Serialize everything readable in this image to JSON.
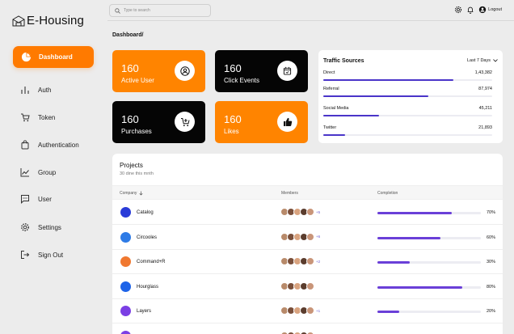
{
  "app": {
    "title": "E-Housing"
  },
  "sidebar": {
    "active": {
      "label": "Dashboard",
      "icon": "pie-chart-icon"
    },
    "items": [
      {
        "label": "Auth",
        "icon": "bar-chart-icon"
      },
      {
        "label": "Token",
        "icon": "cart-icon"
      },
      {
        "label": "Authentication",
        "icon": "bag-icon"
      },
      {
        "label": "Group",
        "icon": "line-chart-icon"
      },
      {
        "label": "User",
        "icon": "chat-icon"
      },
      {
        "label": "Settings",
        "icon": "gear-icon"
      },
      {
        "label": "Sign Out",
        "icon": "signout-icon"
      }
    ]
  },
  "topbar": {
    "search_placeholder": "Type to search",
    "logout_label": "Logout"
  },
  "breadcrumb": "Dashboard/",
  "stats": [
    {
      "value": "160",
      "label": "Active User",
      "icon": "user-circle-icon",
      "color": "#ff8400"
    },
    {
      "value": "160",
      "label": "Click Events",
      "icon": "calendar-icon",
      "color": "#050505"
    },
    {
      "value": "160",
      "label": "Purchases",
      "icon": "cart-add-icon",
      "color": "#050505"
    },
    {
      "value": "160",
      "label": "Likes",
      "icon": "thumbs-up-icon",
      "color": "#ff8400"
    }
  ],
  "traffic": {
    "title": "Traffic Sources",
    "range": "Last 7 Days",
    "rows": [
      {
        "name": "Direct",
        "value": "1,43,382",
        "fraction": 0.77
      },
      {
        "name": "Referral",
        "value": "87,974",
        "fraction": 0.62
      },
      {
        "name": "Social Media",
        "value": "45,211",
        "fraction": 0.33
      },
      {
        "name": "Twitter",
        "value": "21,893",
        "fraction": 0.13
      }
    ]
  },
  "projects": {
    "title": "Projects",
    "subtitle": "30 dine this mnth",
    "headers": {
      "company": "Company",
      "members": "Members",
      "completion": "Completion"
    },
    "rows": [
      {
        "company": "Catalog",
        "logo_color": "#2a3bd8",
        "more": "+5",
        "percent": "70%",
        "fraction": 0.72
      },
      {
        "company": "Circooles",
        "logo_color": "#2e7be6",
        "more": "+6",
        "percent": "60%",
        "fraction": 0.61
      },
      {
        "company": "Command+R",
        "logo_color": "#f07830",
        "more": "+2",
        "percent": "30%",
        "fraction": 0.31
      },
      {
        "company": "Hourglass",
        "logo_color": "#1d63e8",
        "more": "",
        "percent": "80%",
        "fraction": 0.82
      },
      {
        "company": "Layers",
        "logo_color": "#7b3fe4",
        "more": "+1",
        "percent": "20%",
        "fraction": 0.21
      },
      {
        "company": "",
        "logo_color": "#7b3fe4",
        "more": "",
        "percent": "",
        "fraction": 0
      }
    ]
  }
}
